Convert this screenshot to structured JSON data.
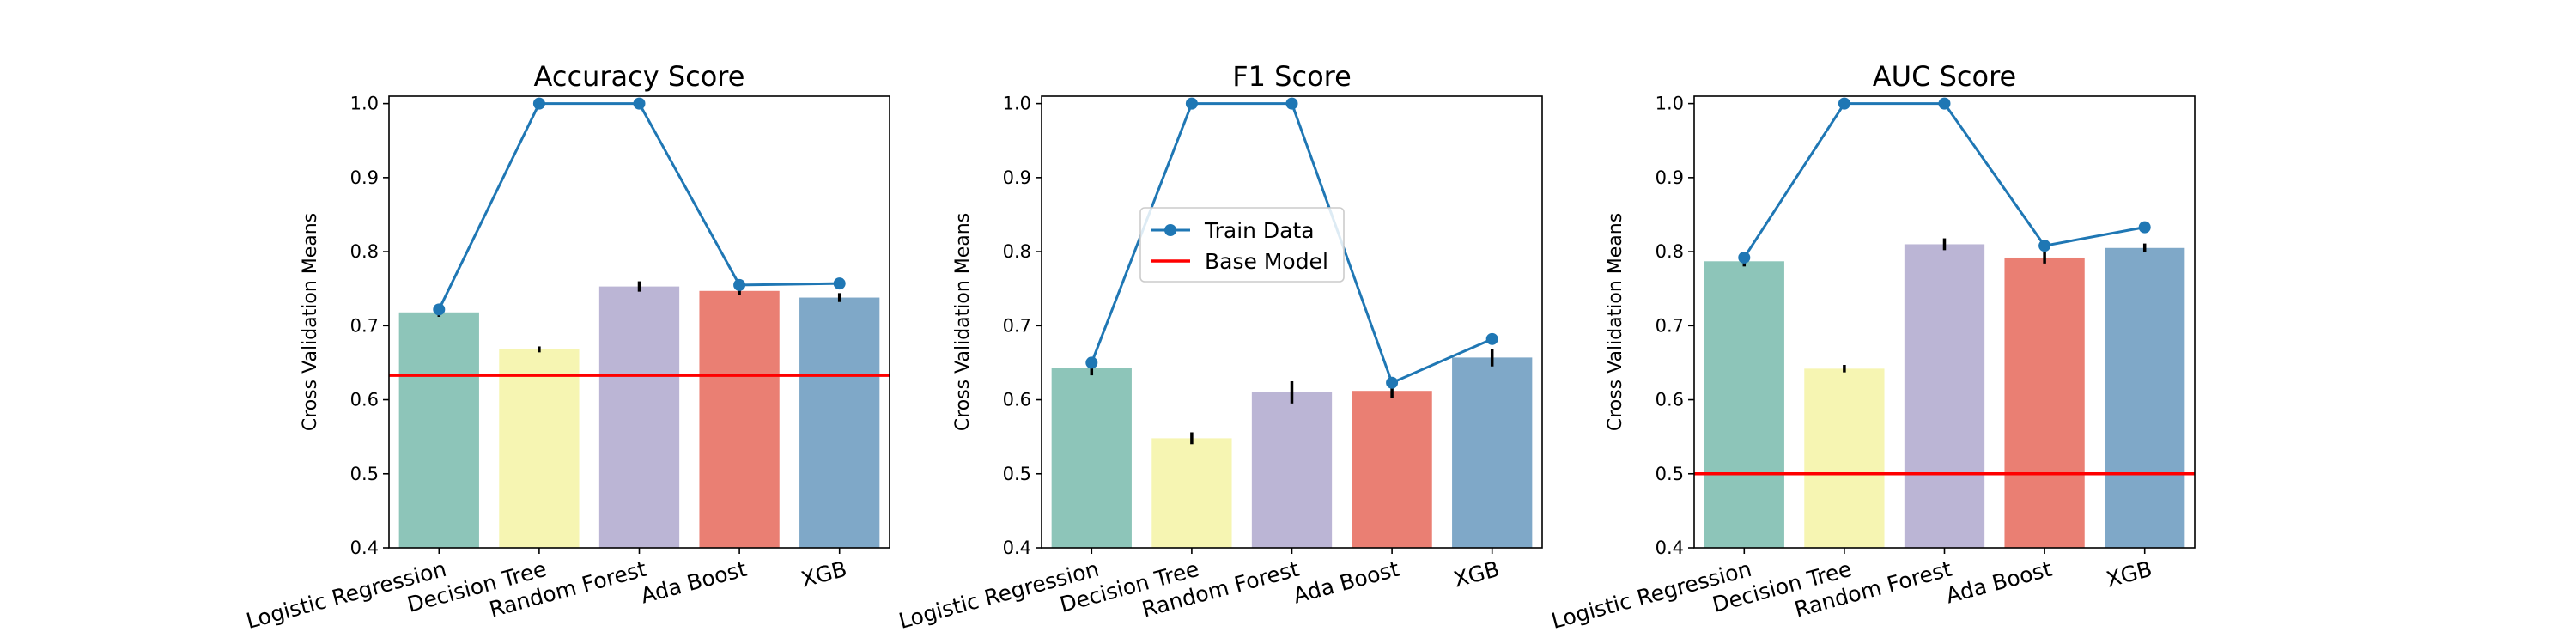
{
  "chart_data": [
    {
      "type": "bar",
      "title": "Accuracy Score",
      "ylabel": "Cross Validation Means",
      "xlabel": "",
      "ylim": [
        0.4,
        1.01
      ],
      "yticks": [
        "0.4",
        "0.5",
        "0.6",
        "0.7",
        "0.8",
        "0.9",
        "1.0"
      ],
      "categories": [
        "Logistic Regression",
        "Decision Tree",
        "Random Forest",
        "Ada Boost",
        "XGB"
      ],
      "values": [
        0.718,
        0.668,
        0.753,
        0.747,
        0.738
      ],
      "errors": [
        0.006,
        0.004,
        0.007,
        0.006,
        0.006
      ],
      "train": [
        0.722,
        1.0,
        1.0,
        0.755,
        0.757
      ],
      "baseline": 0.633,
      "show_legend": false
    },
    {
      "type": "bar",
      "title": "F1 Score",
      "ylabel": "Cross Validation Means",
      "xlabel": "",
      "ylim": [
        0.4,
        1.01
      ],
      "yticks": [
        "0.4",
        "0.5",
        "0.6",
        "0.7",
        "0.8",
        "0.9",
        "1.0"
      ],
      "categories": [
        "Logistic Regression",
        "Decision Tree",
        "Random Forest",
        "Ada Boost",
        "XGB"
      ],
      "values": [
        0.643,
        0.548,
        0.61,
        0.612,
        0.657
      ],
      "errors": [
        0.01,
        0.008,
        0.015,
        0.01,
        0.012
      ],
      "train": [
        0.65,
        1.0,
        1.0,
        0.623,
        0.682
      ],
      "baseline": 0.0,
      "show_legend": true,
      "legend_position": "center-left",
      "legend": [
        "Train Data",
        "Base Model"
      ]
    },
    {
      "type": "bar",
      "title": "AUC Score",
      "ylabel": "Cross Validation Means",
      "xlabel": "",
      "ylim": [
        0.4,
        1.01
      ],
      "yticks": [
        "0.4",
        "0.5",
        "0.6",
        "0.7",
        "0.8",
        "0.9",
        "1.0"
      ],
      "categories": [
        "Logistic Regression",
        "Decision Tree",
        "Random Forest",
        "Ada Boost",
        "XGB"
      ],
      "values": [
        0.787,
        0.642,
        0.81,
        0.792,
        0.805
      ],
      "errors": [
        0.007,
        0.005,
        0.008,
        0.008,
        0.006
      ],
      "train": [
        0.792,
        1.0,
        1.0,
        0.808,
        0.833
      ],
      "baseline": 0.5,
      "show_legend": false
    }
  ],
  "colors": {
    "bars": [
      "#8dc5b9",
      "#f6f5b2",
      "#bbb5d5",
      "#ea7f73",
      "#7fa8c8"
    ],
    "train_line": "#1f77b4",
    "baseline": "#ff0000",
    "errorbar": "#000000"
  }
}
